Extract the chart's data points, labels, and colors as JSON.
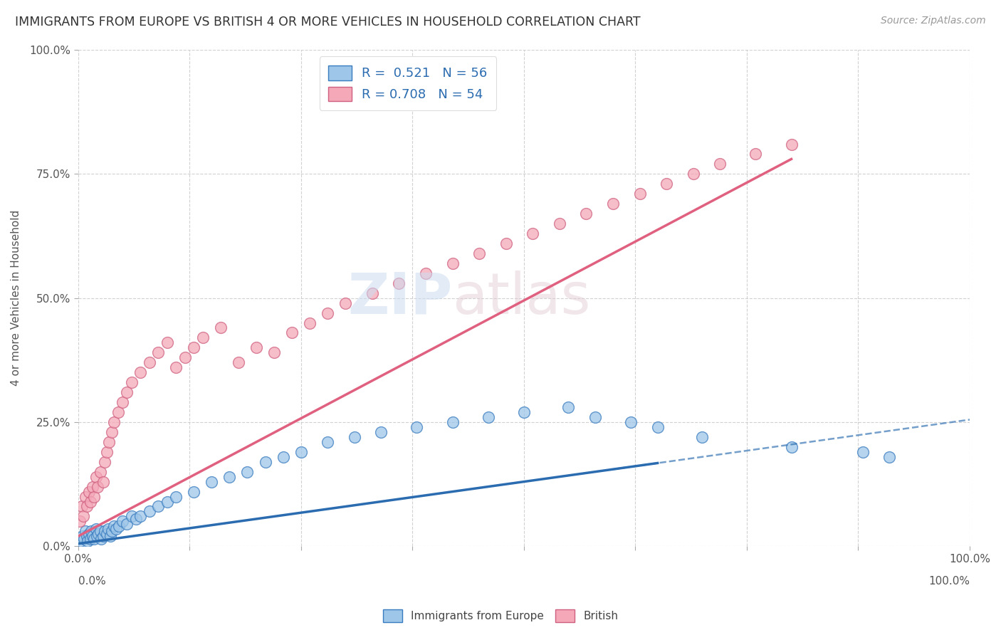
{
  "title": "IMMIGRANTS FROM EUROPE VS BRITISH 4 OR MORE VEHICLES IN HOUSEHOLD CORRELATION CHART",
  "source": "Source: ZipAtlas.com",
  "xlabel": "",
  "ylabel": "4 or more Vehicles in Household",
  "xlim": [
    0,
    100
  ],
  "ylim": [
    0,
    100
  ],
  "xtick_labels": [
    "0.0%",
    "100.0%"
  ],
  "ytick_labels": [
    "0.0%",
    "25.0%",
    "50.0%",
    "75.0%",
    "100.0%"
  ],
  "ytick_values": [
    0,
    25,
    50,
    75,
    100
  ],
  "legend_r1": "R =  0.521   N = 56",
  "legend_r2": "R = 0.708   N = 54",
  "blue_color": "#9ec6e8",
  "pink_color": "#f4a8b8",
  "blue_line_color": "#2b6cb0",
  "pink_line_color": "#e06080",
  "blue_edge_color": "#3a7cc0",
  "pink_edge_color": "#d06080",
  "title_fontsize": 13,
  "blue_scatter_x": [
    0.3,
    0.5,
    0.7,
    0.8,
    1.0,
    1.1,
    1.2,
    1.4,
    1.5,
    1.6,
    1.8,
    2.0,
    2.1,
    2.3,
    2.5,
    2.6,
    2.8,
    3.0,
    3.2,
    3.4,
    3.6,
    3.8,
    4.0,
    4.3,
    4.6,
    5.0,
    5.5,
    6.0,
    6.5,
    7.0,
    8.0,
    9.0,
    10.0,
    11.0,
    13.0,
    15.0,
    17.0,
    19.0,
    21.0,
    23.0,
    25.0,
    28.0,
    31.0,
    34.0,
    38.0,
    42.0,
    46.0,
    50.0,
    55.0,
    58.0,
    62.0,
    65.0,
    70.0,
    80.0,
    88.0,
    91.0
  ],
  "blue_scatter_y": [
    1.0,
    2.0,
    1.5,
    3.0,
    2.0,
    1.0,
    2.5,
    1.5,
    3.0,
    2.0,
    1.5,
    3.5,
    2.0,
    2.5,
    3.0,
    1.5,
    2.0,
    3.0,
    2.5,
    3.5,
    2.0,
    3.0,
    4.0,
    3.5,
    4.0,
    5.0,
    4.5,
    6.0,
    5.5,
    6.0,
    7.0,
    8.0,
    9.0,
    10.0,
    11.0,
    13.0,
    14.0,
    15.0,
    17.0,
    18.0,
    19.0,
    21.0,
    22.0,
    23.0,
    24.0,
    25.0,
    26.0,
    27.0,
    28.0,
    26.0,
    25.0,
    24.0,
    22.0,
    20.0,
    19.0,
    18.0
  ],
  "pink_scatter_x": [
    0.2,
    0.4,
    0.6,
    0.8,
    1.0,
    1.2,
    1.4,
    1.6,
    1.8,
    2.0,
    2.2,
    2.5,
    2.8,
    3.0,
    3.2,
    3.5,
    3.8,
    4.0,
    4.5,
    5.0,
    5.5,
    6.0,
    7.0,
    8.0,
    9.0,
    10.0,
    11.0,
    12.0,
    13.0,
    14.0,
    16.0,
    18.0,
    20.0,
    22.0,
    24.0,
    26.0,
    28.0,
    30.0,
    33.0,
    36.0,
    39.0,
    42.0,
    45.0,
    48.0,
    51.0,
    54.0,
    57.0,
    60.0,
    63.0,
    66.0,
    69.0,
    72.0,
    76.0,
    80.0
  ],
  "pink_scatter_y": [
    5.0,
    8.0,
    6.0,
    10.0,
    8.0,
    11.0,
    9.0,
    12.0,
    10.0,
    14.0,
    12.0,
    15.0,
    13.0,
    17.0,
    19.0,
    21.0,
    23.0,
    25.0,
    27.0,
    29.0,
    31.0,
    33.0,
    35.0,
    37.0,
    39.0,
    41.0,
    36.0,
    38.0,
    40.0,
    42.0,
    44.0,
    37.0,
    40.0,
    39.0,
    43.0,
    45.0,
    47.0,
    49.0,
    51.0,
    53.0,
    55.0,
    57.0,
    59.0,
    61.0,
    63.0,
    65.0,
    67.0,
    69.0,
    71.0,
    73.0,
    75.0,
    77.0,
    79.0,
    81.0
  ],
  "grid_color": "#cccccc",
  "background_color": "#ffffff",
  "blue_slope": 0.25,
  "blue_intercept": 0.5,
  "pink_slope": 0.95,
  "pink_intercept": 2.0,
  "blue_line_xend": 100,
  "pink_line_xend": 80,
  "dash_xstart": 60,
  "dash_xend": 100
}
